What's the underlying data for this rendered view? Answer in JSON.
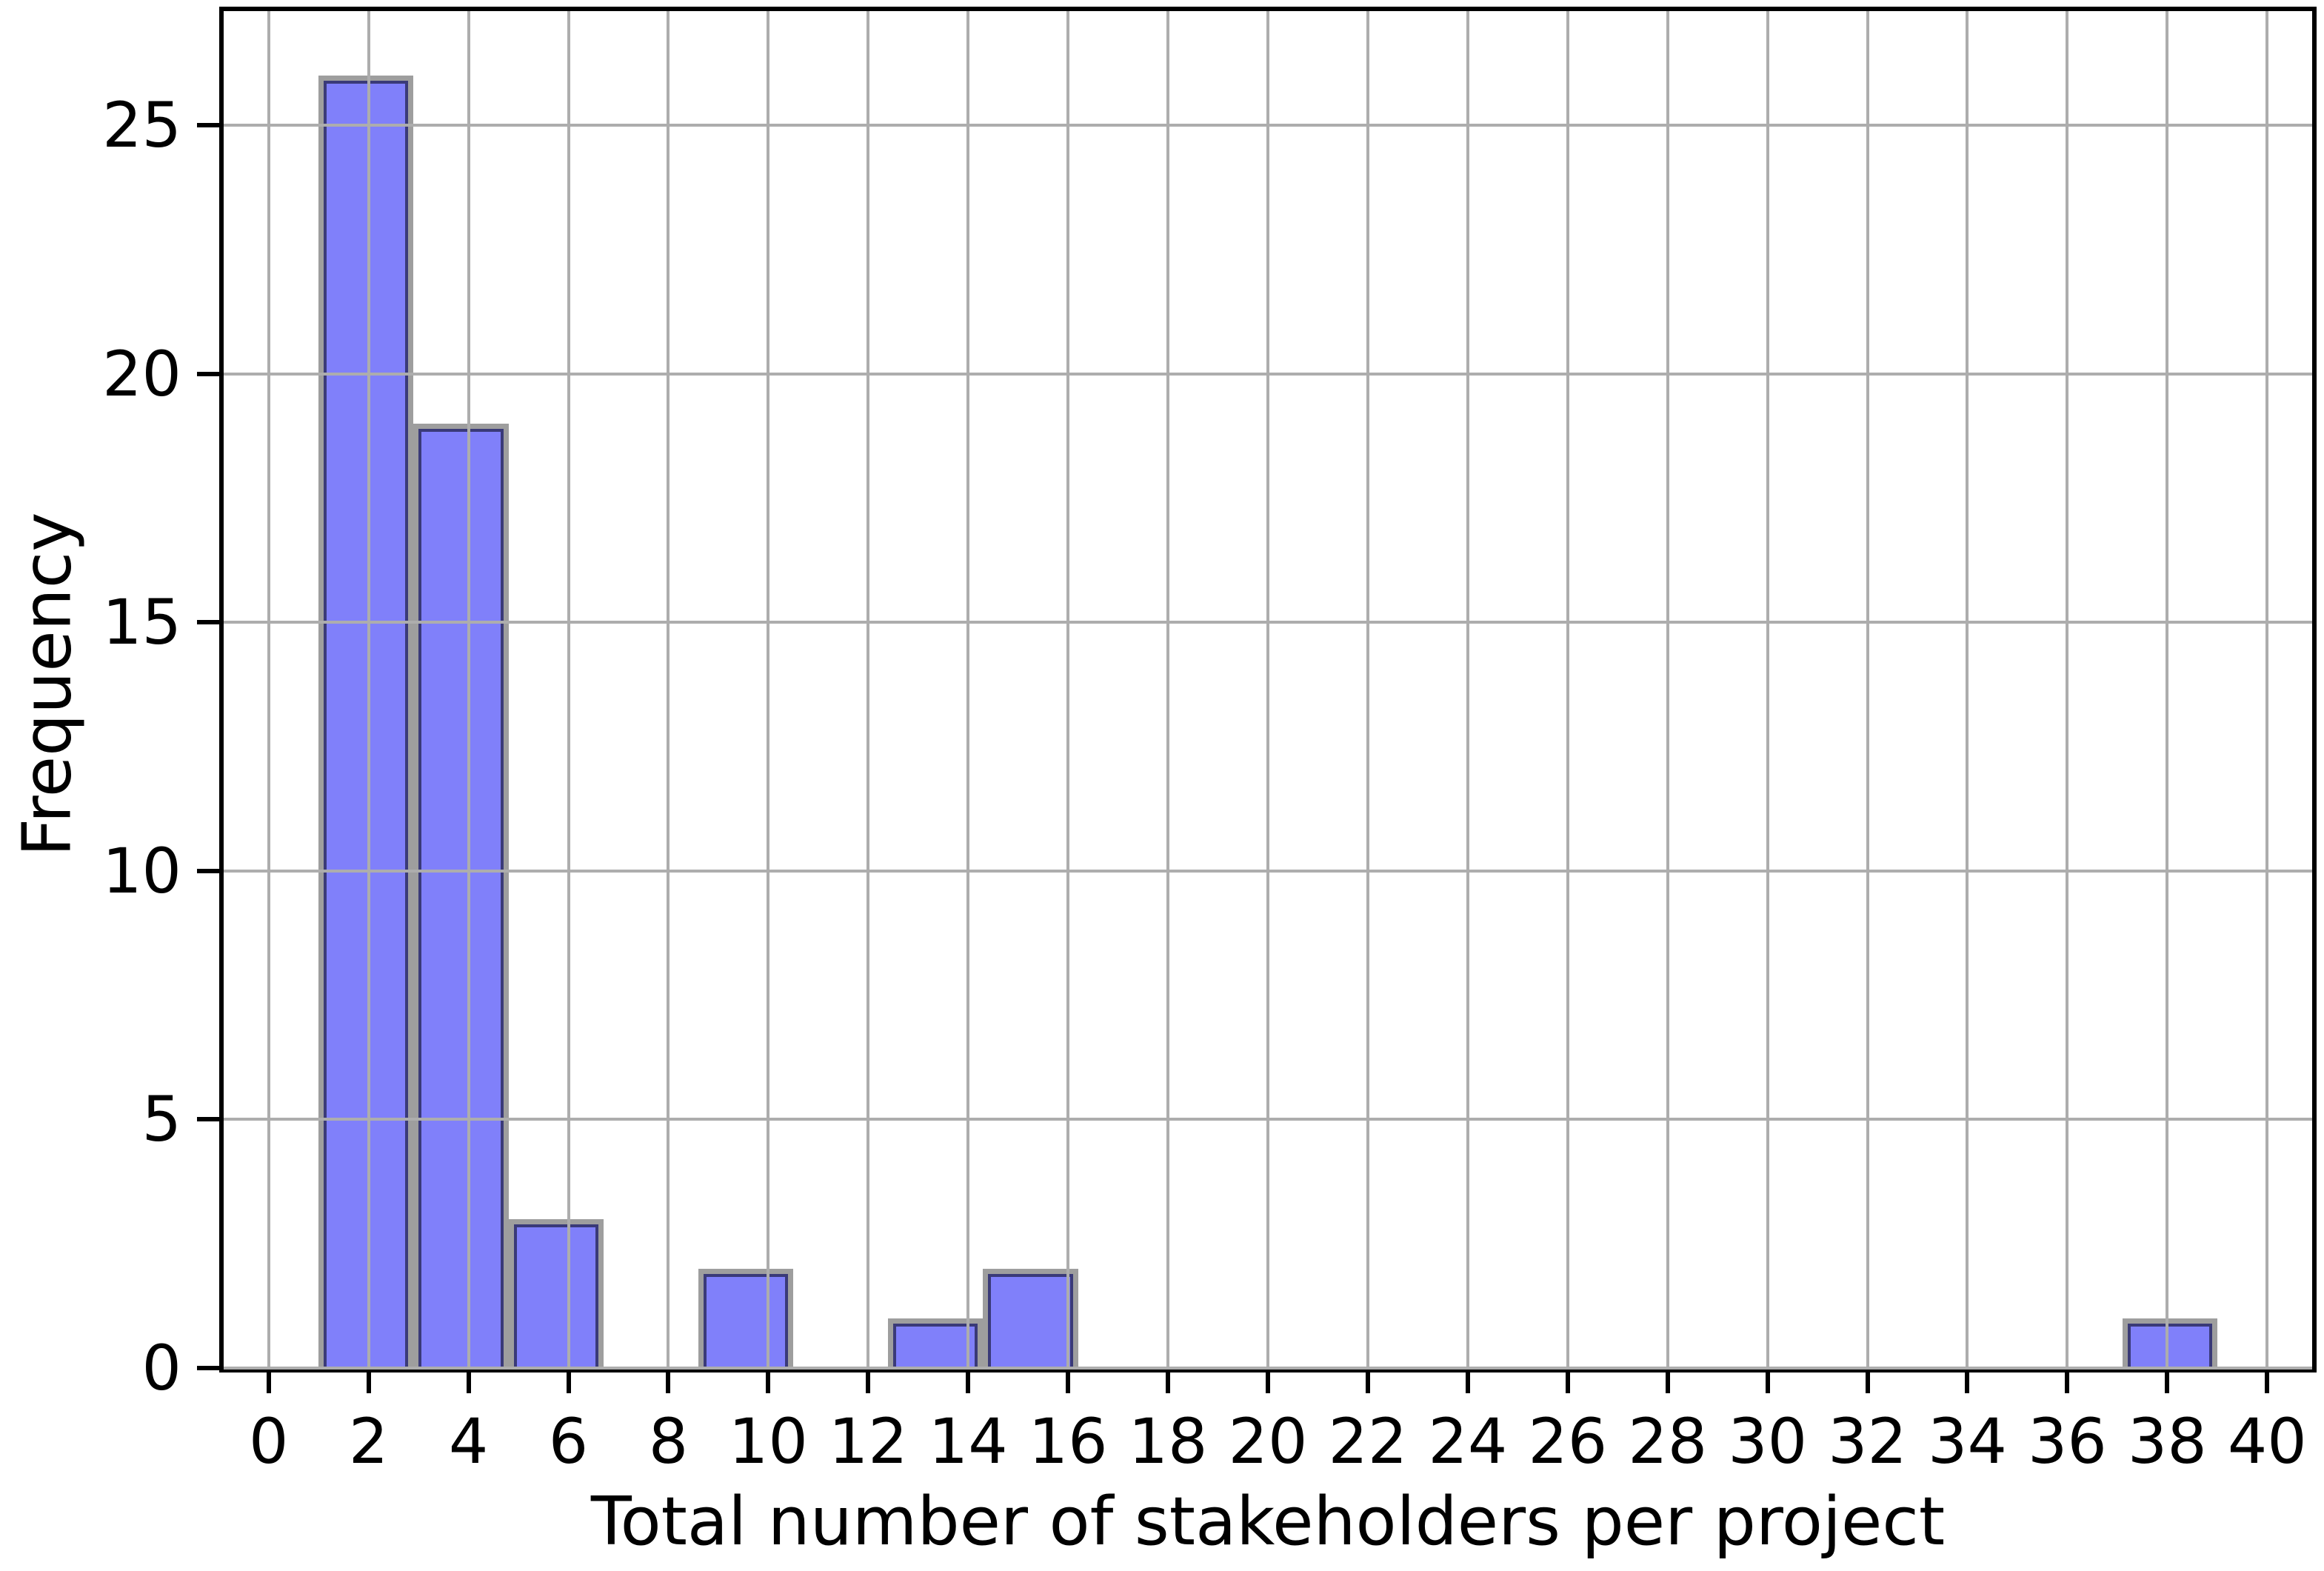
{
  "chart_data": {
    "type": "bar",
    "subtype": "histogram",
    "xlabel": "Total number of stakeholders per project",
    "ylabel": "Frequency",
    "bin_start": 1.0,
    "bin_width": 1.9,
    "bin_counts": [
      26,
      19,
      3,
      0,
      2,
      0,
      1,
      2,
      0,
      0,
      0,
      0,
      0,
      0,
      0,
      0,
      0,
      0,
      0,
      1
    ],
    "bars": [
      {
        "x0": 1.0,
        "x1": 2.9,
        "count": 26
      },
      {
        "x0": 2.9,
        "x1": 4.8,
        "count": 19
      },
      {
        "x0": 4.8,
        "x1": 6.7,
        "count": 3
      },
      {
        "x0": 8.6,
        "x1": 10.5,
        "count": 2
      },
      {
        "x0": 12.4,
        "x1": 14.3,
        "count": 1
      },
      {
        "x0": 14.3,
        "x1": 16.2,
        "count": 2
      },
      {
        "x0": 37.1,
        "x1": 39.0,
        "count": 1
      }
    ],
    "x_ticks": [
      0,
      2,
      4,
      6,
      8,
      10,
      12,
      14,
      16,
      18,
      20,
      22,
      24,
      26,
      28,
      30,
      32,
      34,
      36,
      38,
      40
    ],
    "y_ticks": [
      0,
      5,
      10,
      15,
      20,
      25
    ],
    "xlim": [
      -0.9,
      40.9
    ],
    "ylim": [
      0,
      27.3
    ],
    "grid": true,
    "grid_on_top": true,
    "legend": null,
    "colors": {
      "bar_fill": "#8080fa",
      "bar_edge_inner": "#3a3a78",
      "bar_edge_outer": "#9e9e9e",
      "gridline": "#adadad",
      "spine": "#000000",
      "text": "#000000",
      "background": "#ffffff"
    }
  }
}
